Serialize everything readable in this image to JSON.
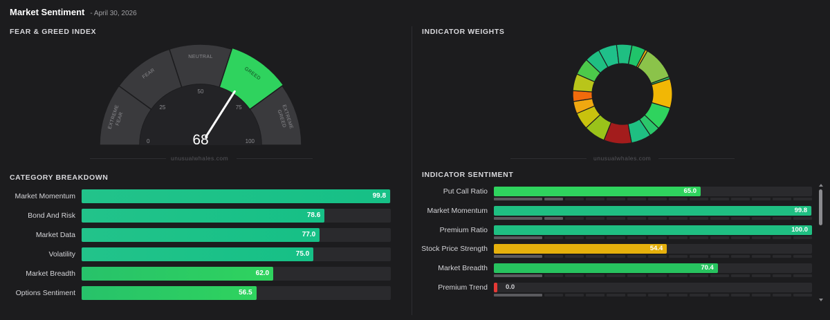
{
  "header": {
    "title": "Market Sentiment",
    "date": "- April 30, 2026"
  },
  "fear_greed": {
    "section_title": "FEAR & GREED INDEX",
    "value": "68",
    "value_number": 68,
    "zones": [
      {
        "label_lines": [
          "EXTREME",
          "FEAR"
        ],
        "color": "#3a3a3d",
        "active": false
      },
      {
        "label_lines": [
          "FEAR"
        ],
        "color": "#3a3a3d",
        "active": false
      },
      {
        "label_lines": [
          "NEUTRAL"
        ],
        "color": "#3a3a3d",
        "active": false
      },
      {
        "label_lines": [
          "GREED"
        ],
        "color": "#2fd35e",
        "active": true
      },
      {
        "label_lines": [
          "EXTREME",
          "GREED"
        ],
        "color": "#3a3a3d",
        "active": false
      }
    ],
    "ticks": [
      "0",
      "25",
      "50",
      "75",
      "100"
    ],
    "watermark": "unusualwhales.com"
  },
  "indicator_weights": {
    "section_title": "INDICATOR WEIGHTS",
    "watermark": "unusualwhales.com",
    "segments": [
      {
        "color": "#8bc34a"
      },
      {
        "color": "#2fc45c"
      },
      {
        "color": "#f2b705"
      },
      {
        "color": "#2fd35e"
      },
      {
        "color": "#2bc76b"
      },
      {
        "color": "#1fbf82"
      },
      {
        "color": "#a31c1c"
      },
      {
        "color": "#9ac21a"
      },
      {
        "color": "#c8c20e"
      },
      {
        "color": "#f0a810"
      },
      {
        "color": "#f26b0c"
      },
      {
        "color": "#b9c51a"
      },
      {
        "color": "#4cc94a"
      },
      {
        "color": "#1fbf82"
      },
      {
        "color": "#1fc08a"
      },
      {
        "color": "#1fbf82"
      },
      {
        "color": "#20c46a"
      },
      {
        "color": "#e9b40c"
      }
    ]
  },
  "category_breakdown": {
    "section_title": "CATEGORY BREAKDOWN",
    "rows": [
      {
        "label": "Market Momentum",
        "value": "99.8",
        "pct": 99.8,
        "color": "teal"
      },
      {
        "label": "Bond And Risk",
        "value": "78.6",
        "pct": 78.6,
        "color": "teal"
      },
      {
        "label": "Market Data",
        "value": "77.0",
        "pct": 77.0,
        "color": "teal"
      },
      {
        "label": "Volatility",
        "value": "75.0",
        "pct": 75.0,
        "color": "teal"
      },
      {
        "label": "Market Breadth",
        "value": "62.0",
        "pct": 62.0,
        "color": "green"
      },
      {
        "label": "Options Sentiment",
        "value": "56.5",
        "pct": 56.5,
        "color": "green"
      }
    ]
  },
  "indicator_sentiment": {
    "section_title": "INDICATOR SENTIMENT",
    "rows": [
      {
        "label": "Put Call Ratio",
        "value": "65.0",
        "pct": 65.0,
        "color": "#2fd35e",
        "sub_on": 2
      },
      {
        "label": "Market Momentum",
        "value": "99.8",
        "pct": 99.8,
        "color": "#1fbf82",
        "sub_on": 2
      },
      {
        "label": "Premium Ratio",
        "value": "100.0",
        "pct": 100.0,
        "color": "#1fbf82",
        "sub_on": 1
      },
      {
        "label": "Stock Price Strength",
        "value": "54.4",
        "pct": 54.4,
        "color": "#e5b00c",
        "sub_on": 1
      },
      {
        "label": "Market Breadth",
        "value": "70.4",
        "pct": 70.4,
        "color": "#27c35f",
        "sub_on": 1
      },
      {
        "label": "Premium Trend",
        "value": "0.0",
        "pct": 0.0,
        "color": "#e53935",
        "sub_on": 1
      }
    ]
  }
}
